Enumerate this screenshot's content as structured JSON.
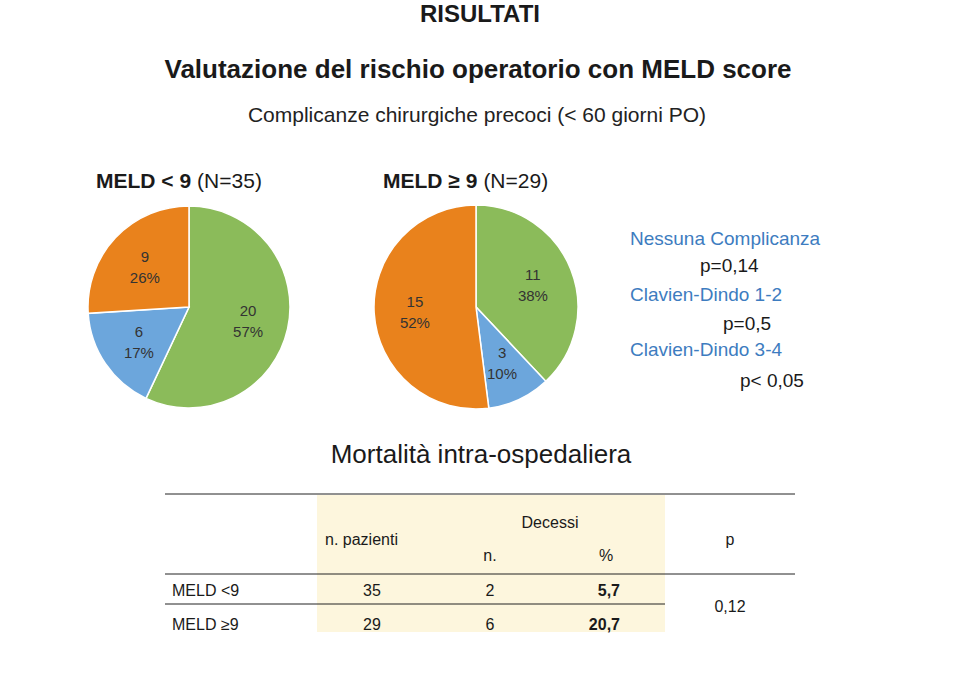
{
  "header": {
    "title": "RISULTATI",
    "heading": "Valutazione del rischio operatorio con MELD score",
    "subheading": "Complicanze chirurgiche precoci (< 60 giorni PO)"
  },
  "chart_data": [
    {
      "type": "pie",
      "title": "MELD < 9",
      "subtitle": "(N=35)",
      "values": [
        57,
        17,
        26
      ],
      "value_labels": [
        "57%",
        "17%",
        "26%"
      ],
      "counts": [
        20,
        6,
        9
      ],
      "colors": [
        "#8bbb5a",
        "#6ca6dc",
        "#e9821c"
      ],
      "data_labels": true
    },
    {
      "type": "pie",
      "title": "MELD ≥ 9",
      "subtitle": "(N=29)",
      "values": [
        38,
        10,
        52
      ],
      "value_labels": [
        "38%",
        "10%",
        "52%"
      ],
      "counts": [
        11,
        3,
        15
      ],
      "colors": [
        "#8bbb5a",
        "#6ca6dc",
        "#e9821c"
      ],
      "data_labels": true
    }
  ],
  "legend": {
    "items": [
      "Nessuna Complicanza",
      "Clavien-Dindo 1-2",
      "Clavien-Dindo 3-4"
    ],
    "p_values": [
      "p=0,14",
      "p=0,5",
      "p< 0,05"
    ]
  },
  "mortality": {
    "title": "Mortalità intra-ospedaliera",
    "columns": {
      "patients": "n. pazienti",
      "deaths": "Decessi",
      "deaths_n": "n.",
      "deaths_pct": "%",
      "p": "p"
    },
    "rows": [
      [
        "MELD <9",
        35,
        2,
        "5,7"
      ],
      [
        "MELD ≥9",
        29,
        6,
        "20,7"
      ]
    ],
    "p": "0,12"
  }
}
